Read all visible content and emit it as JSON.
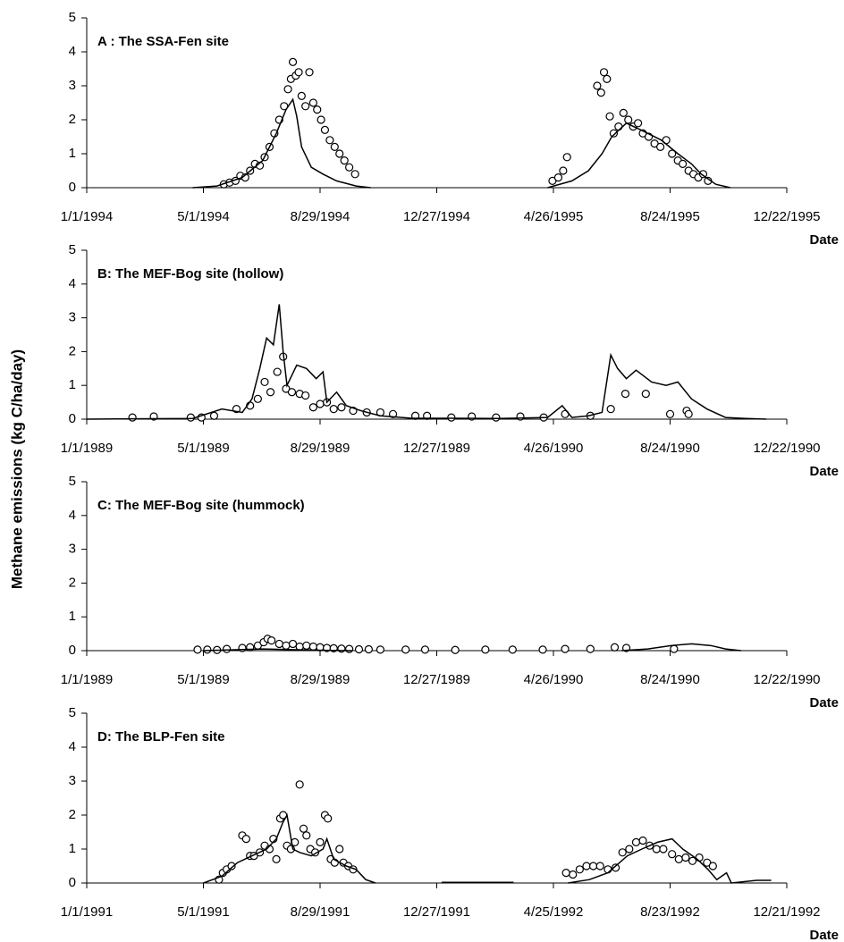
{
  "ylabel": "Methane emissions (kg C/ha/day)",
  "chart_data": [
    {
      "type": "line",
      "title": "A : The SSA-Fen site",
      "xlabel": "Date",
      "xlim": [
        "1994-01-01",
        "1995-12-22"
      ],
      "ylim": [
        0,
        5
      ],
      "yticks": [
        0,
        1,
        2,
        3,
        4,
        5
      ],
      "xticks": [
        {
          "value": "1994-01-01",
          "label": "1/1/1994"
        },
        {
          "value": "1994-05-01",
          "label": "5/1/1994"
        },
        {
          "value": "1994-08-29",
          "label": "8/29/1994"
        },
        {
          "value": "1994-12-27",
          "label": "12/27/1994"
        },
        {
          "value": "1995-04-26",
          "label": "4/26/1995"
        },
        {
          "value": "1995-08-24",
          "label": "8/24/1995"
        },
        {
          "value": "1995-12-22",
          "label": "12/22/1995"
        }
      ],
      "series": [
        {
          "mode": "markers",
          "color": "#000000",
          "x": [
            "1994-05-22",
            "1994-05-28",
            "1994-06-03",
            "1994-06-08",
            "1994-06-13",
            "1994-06-18",
            "1994-06-23",
            "1994-06-28",
            "1994-07-03",
            "1994-07-08",
            "1994-07-13",
            "1994-07-18",
            "1994-07-23",
            "1994-07-27",
            "1994-07-30",
            "1994-08-01",
            "1994-08-04",
            "1994-08-07",
            "1994-08-10",
            "1994-08-14",
            "1994-08-18",
            "1994-08-22",
            "1994-08-26",
            "1994-08-30",
            "1994-09-03",
            "1994-09-08",
            "1994-09-13",
            "1994-09-18",
            "1994-09-23",
            "1994-09-28",
            "1994-10-04",
            "1995-04-25",
            "1995-05-01",
            "1995-05-06",
            "1995-05-10",
            "1995-06-10",
            "1995-06-14",
            "1995-06-17",
            "1995-06-20",
            "1995-06-23",
            "1995-06-27",
            "1995-07-02",
            "1995-07-07",
            "1995-07-12",
            "1995-07-17",
            "1995-07-22",
            "1995-07-27",
            "1995-08-02",
            "1995-08-08",
            "1995-08-14",
            "1995-08-20",
            "1995-08-26",
            "1995-09-01",
            "1995-09-06",
            "1995-09-12",
            "1995-09-17",
            "1995-09-22",
            "1995-09-27",
            "1995-10-02"
          ],
          "values": [
            0.1,
            0.15,
            0.2,
            0.35,
            0.3,
            0.5,
            0.7,
            0.65,
            0.9,
            1.2,
            1.6,
            2.0,
            2.4,
            2.9,
            3.2,
            3.7,
            3.3,
            3.4,
            2.7,
            2.4,
            3.4,
            2.5,
            2.3,
            2.0,
            1.7,
            1.4,
            1.2,
            1.0,
            0.8,
            0.6,
            0.4,
            0.2,
            0.3,
            0.5,
            0.9,
            3.0,
            2.8,
            3.4,
            3.2,
            2.1,
            1.6,
            1.8,
            2.2,
            2.0,
            1.8,
            1.9,
            1.6,
            1.5,
            1.3,
            1.2,
            1.4,
            1.0,
            0.8,
            0.7,
            0.5,
            0.4,
            0.3,
            0.4,
            0.2
          ]
        },
        {
          "mode": "lines",
          "color": "#000000",
          "x": [
            "1994-04-20",
            "1994-05-15",
            "1994-06-10",
            "1994-07-01",
            "1994-07-15",
            "1994-07-25",
            "1994-08-01",
            "1994-08-05",
            "1994-08-10",
            "1994-08-20",
            "1994-09-01",
            "1994-09-15",
            "1994-10-05",
            "1994-10-20",
            "1995-01-01",
            "1995-04-20",
            "1995-05-15",
            "1995-06-01",
            "1995-06-15",
            "1995-06-25",
            "1995-07-10",
            "1995-07-25",
            "1995-08-15",
            "1995-09-01",
            "1995-09-15",
            "1995-09-25",
            "1995-10-10",
            "1995-10-25"
          ],
          "values": [
            0,
            0.05,
            0.3,
            0.8,
            1.6,
            2.3,
            2.6,
            2.1,
            1.2,
            0.6,
            0.4,
            0.2,
            0.05,
            0,
            null,
            0,
            0.2,
            0.5,
            1.0,
            1.5,
            1.9,
            1.7,
            1.4,
            1.0,
            0.7,
            0.4,
            0.1,
            0
          ]
        }
      ]
    },
    {
      "type": "line",
      "title": "B: The MEF-Bog site (hollow)",
      "xlabel": "Date",
      "xlim": [
        "1989-01-01",
        "1990-12-22"
      ],
      "ylim": [
        0,
        5
      ],
      "yticks": [
        0,
        1,
        2,
        3,
        4,
        5
      ],
      "xticks": [
        {
          "value": "1989-01-01",
          "label": "1/1/1989"
        },
        {
          "value": "1989-05-01",
          "label": "5/1/1989"
        },
        {
          "value": "1989-08-29",
          "label": "8/29/1989"
        },
        {
          "value": "1989-12-27",
          "label": "12/27/1989"
        },
        {
          "value": "1990-04-26",
          "label": "4/26/1990"
        },
        {
          "value": "1990-08-24",
          "label": "8/24/1990"
        },
        {
          "value": "1990-12-22",
          "label": "12/22/1990"
        }
      ],
      "series": [
        {
          "mode": "markers",
          "color": "#000000",
          "x": [
            "1989-02-17",
            "1989-03-11",
            "1989-04-18",
            "1989-04-29",
            "1989-05-12",
            "1989-06-04",
            "1989-06-18",
            "1989-06-26",
            "1989-07-03",
            "1989-07-09",
            "1989-07-16",
            "1989-07-22",
            "1989-07-25",
            "1989-07-31",
            "1989-08-08",
            "1989-08-14",
            "1989-08-22",
            "1989-08-29",
            "1989-09-05",
            "1989-09-12",
            "1989-09-20",
            "1989-10-02",
            "1989-10-16",
            "1989-10-30",
            "1989-11-12",
            "1989-12-05",
            "1989-12-17",
            "1990-01-11",
            "1990-02-01",
            "1990-02-26",
            "1990-03-23",
            "1990-04-16",
            "1990-05-08",
            "1990-06-03",
            "1990-06-24",
            "1990-07-09",
            "1990-07-30",
            "1990-08-24",
            "1990-09-10",
            "1990-09-12"
          ],
          "values": [
            0.05,
            0.08,
            0.05,
            0.05,
            0.1,
            0.3,
            0.4,
            0.6,
            1.1,
            0.8,
            1.4,
            1.85,
            0.9,
            0.8,
            0.75,
            0.7,
            0.35,
            0.45,
            0.5,
            0.3,
            0.35,
            0.25,
            0.2,
            0.2,
            0.15,
            0.1,
            0.1,
            0.05,
            0.08,
            0.05,
            0.08,
            0.05,
            0.15,
            0.1,
            0.3,
            0.75,
            0.75,
            0.15,
            0.25,
            0.15
          ]
        },
        {
          "mode": "lines",
          "color": "#000000",
          "x": [
            "1989-01-01",
            "1989-04-20",
            "1989-05-20",
            "1989-06-10",
            "1989-06-20",
            "1989-06-28",
            "1989-07-05",
            "1989-07-12",
            "1989-07-18",
            "1989-07-22",
            "1989-07-26",
            "1989-08-05",
            "1989-08-15",
            "1989-08-25",
            "1989-09-01",
            "1989-09-05",
            "1989-09-15",
            "1989-09-25",
            "1989-10-10",
            "1989-10-30",
            "1989-11-30",
            "1990-03-01",
            "1990-04-20",
            "1990-05-05",
            "1990-05-15",
            "1990-06-01",
            "1990-06-15",
            "1990-06-24",
            "1990-07-01",
            "1990-07-10",
            "1990-07-20",
            "1990-08-05",
            "1990-08-20",
            "1990-09-01",
            "1990-09-15",
            "1990-10-01",
            "1990-10-20",
            "1990-11-10",
            "1990-12-01"
          ],
          "values": [
            0,
            0.02,
            0.3,
            0.2,
            0.6,
            1.5,
            2.4,
            2.2,
            3.4,
            2.0,
            1.0,
            1.6,
            1.5,
            1.2,
            1.4,
            0.5,
            0.8,
            0.4,
            0.25,
            0.1,
            0.03,
            0.02,
            0.05,
            0.4,
            0.05,
            0.1,
            0.2,
            1.9,
            1.5,
            1.2,
            1.45,
            1.1,
            1.0,
            1.1,
            0.6,
            0.3,
            0.05,
            0.02,
            0
          ]
        }
      ]
    },
    {
      "type": "line",
      "title": "C: The MEF-Bog site (hummock)",
      "xlabel": "Date",
      "xlim": [
        "1989-01-01",
        "1990-12-22"
      ],
      "ylim": [
        0,
        5
      ],
      "yticks": [
        0,
        1,
        2,
        3,
        4,
        5
      ],
      "xticks": [
        {
          "value": "1989-01-01",
          "label": "1/1/1989"
        },
        {
          "value": "1989-05-01",
          "label": "5/1/1989"
        },
        {
          "value": "1989-08-29",
          "label": "8/29/1989"
        },
        {
          "value": "1989-12-27",
          "label": "12/27/1989"
        },
        {
          "value": "1990-04-26",
          "label": "4/26/1990"
        },
        {
          "value": "1990-08-24",
          "label": "8/24/1990"
        },
        {
          "value": "1990-12-22",
          "label": "12/22/1990"
        }
      ],
      "series": [
        {
          "mode": "markers",
          "color": "#000000",
          "x": [
            "1989-04-25",
            "1989-05-05",
            "1989-05-15",
            "1989-05-25",
            "1989-06-10",
            "1989-06-18",
            "1989-06-26",
            "1989-07-02",
            "1989-07-06",
            "1989-07-10",
            "1989-07-18",
            "1989-07-25",
            "1989-08-01",
            "1989-08-08",
            "1989-08-15",
            "1989-08-22",
            "1989-08-29",
            "1989-09-05",
            "1989-09-12",
            "1989-09-20",
            "1989-09-28",
            "1989-10-08",
            "1989-10-18",
            "1989-10-30",
            "1989-11-25",
            "1989-12-15",
            "1990-01-15",
            "1990-02-15",
            "1990-03-15",
            "1990-04-15",
            "1990-05-08",
            "1990-06-03",
            "1990-06-28",
            "1990-07-10",
            "1990-08-28"
          ],
          "values": [
            0.03,
            0.03,
            0.02,
            0.05,
            0.08,
            0.1,
            0.15,
            0.25,
            0.35,
            0.3,
            0.2,
            0.15,
            0.2,
            0.12,
            0.15,
            0.12,
            0.1,
            0.08,
            0.07,
            0.06,
            0.05,
            0.04,
            0.04,
            0.03,
            0.03,
            0.03,
            0.02,
            0.03,
            0.03,
            0.03,
            0.05,
            0.05,
            0.1,
            0.08,
            0.05
          ]
        },
        {
          "mode": "lines",
          "color": "#000000",
          "x": [
            "1989-05-01",
            "1989-07-01",
            "1989-08-01",
            "1989-09-01",
            "1989-10-01",
            "1990-01-01",
            "1990-07-05",
            "1990-08-01",
            "1990-08-25",
            "1990-09-15",
            "1990-10-05",
            "1990-10-20",
            "1990-11-05"
          ],
          "values": [
            0,
            0.05,
            0.03,
            0.01,
            0,
            null,
            0,
            0.05,
            0.15,
            0.2,
            0.15,
            0.05,
            0
          ]
        }
      ]
    },
    {
      "type": "line",
      "title": "D: The BLP-Fen site",
      "xlabel": "Date",
      "xlim": [
        "1991-01-01",
        "1992-12-21"
      ],
      "ylim": [
        0,
        5
      ],
      "yticks": [
        0,
        1,
        2,
        3,
        4,
        5
      ],
      "xticks": [
        {
          "value": "1991-01-01",
          "label": "1/1/1991"
        },
        {
          "value": "1991-05-01",
          "label": "5/1/1991"
        },
        {
          "value": "1991-08-29",
          "label": "8/29/1991"
        },
        {
          "value": "1991-12-27",
          "label": "12/27/1991"
        },
        {
          "value": "1992-04-25",
          "label": "4/25/1992"
        },
        {
          "value": "1992-08-23",
          "label": "8/23/1992"
        },
        {
          "value": "1992-12-21",
          "label": "12/21/1992"
        }
      ],
      "series": [
        {
          "mode": "markers",
          "color": "#000000",
          "x": [
            "1991-05-17",
            "1991-05-21",
            "1991-05-25",
            "1991-05-30",
            "1991-06-10",
            "1991-06-14",
            "1991-06-18",
            "1991-06-22",
            "1991-06-28",
            "1991-07-03",
            "1991-07-08",
            "1991-07-12",
            "1991-07-15",
            "1991-07-19",
            "1991-07-22",
            "1991-07-26",
            "1991-07-30",
            "1991-08-03",
            "1991-08-08",
            "1991-08-12",
            "1991-08-15",
            "1991-08-19",
            "1991-08-24",
            "1991-08-29",
            "1991-09-03",
            "1991-09-06",
            "1991-09-09",
            "1991-09-13",
            "1991-09-18",
            "1991-09-22",
            "1991-09-27",
            "1991-10-02",
            "1992-05-08",
            "1992-05-15",
            "1992-05-22",
            "1992-05-29",
            "1992-06-05",
            "1992-06-12",
            "1992-06-20",
            "1992-06-28",
            "1992-07-05",
            "1992-07-12",
            "1992-07-19",
            "1992-07-26",
            "1992-08-02",
            "1992-08-09",
            "1992-08-16",
            "1992-08-25",
            "1992-09-01",
            "1992-09-08",
            "1992-09-15",
            "1992-09-22",
            "1992-09-30",
            "1992-10-06"
          ],
          "values": [
            0.1,
            0.3,
            0.4,
            0.5,
            1.4,
            1.3,
            0.8,
            0.8,
            0.9,
            1.1,
            1.0,
            1.3,
            0.7,
            1.9,
            2.0,
            1.1,
            1.0,
            1.2,
            2.9,
            1.6,
            1.4,
            1.0,
            0.9,
            1.2,
            2.0,
            1.9,
            0.7,
            0.6,
            1.0,
            0.6,
            0.5,
            0.4,
            0.3,
            0.25,
            0.4,
            0.5,
            0.5,
            0.5,
            0.4,
            0.45,
            0.9,
            1.0,
            1.2,
            1.25,
            1.1,
            1.0,
            1.0,
            0.85,
            0.7,
            0.75,
            0.65,
            0.75,
            0.6,
            0.5
          ]
        },
        {
          "mode": "lines",
          "color": "#000000",
          "x": [
            "1991-05-01",
            "1991-05-20",
            "1991-06-05",
            "1991-06-20",
            "1991-07-05",
            "1991-07-15",
            "1991-07-22",
            "1991-07-26",
            "1991-08-01",
            "1991-08-08",
            "1991-08-20",
            "1991-09-01",
            "1991-09-05",
            "1991-09-12",
            "1991-09-25",
            "1991-10-05",
            "1991-10-15",
            "1991-10-25",
            "1991-12-01",
            "1992-01-01",
            "1992-03-15",
            "1992-04-15",
            "1992-05-10",
            "1992-06-01",
            "1992-06-20",
            "1992-07-10",
            "1992-07-25",
            "1992-08-10",
            "1992-08-25",
            "1992-09-05",
            "1992-09-20",
            "1992-10-01",
            "1992-10-10",
            "1992-10-20",
            "1992-10-25",
            "1992-11-20",
            "1992-12-05"
          ],
          "values": [
            0,
            0.2,
            0.6,
            0.8,
            1.0,
            1.3,
            1.8,
            2.0,
            1.0,
            0.9,
            0.8,
            1.0,
            1.3,
            0.7,
            0.5,
            0.4,
            0.1,
            0,
            null,
            0.02,
            0.02,
            null,
            0,
            0.1,
            0.3,
            0.8,
            1.0,
            1.2,
            1.3,
            1.0,
            0.7,
            0.4,
            0.1,
            0.3,
            0,
            0.08,
            0.08
          ]
        }
      ]
    }
  ]
}
